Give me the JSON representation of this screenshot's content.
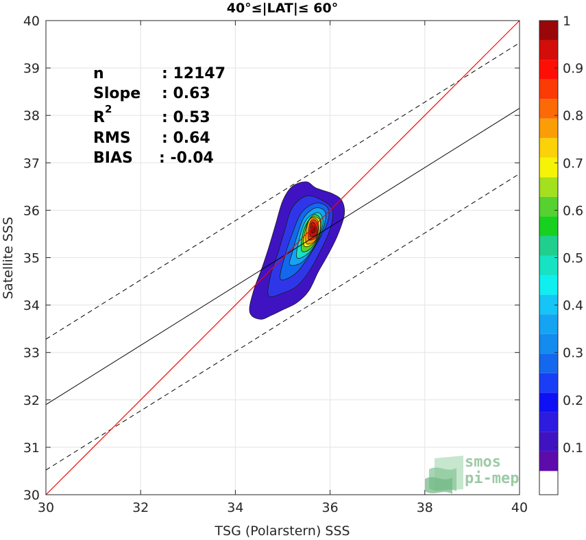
{
  "chart_data": {
    "type": "contour",
    "title": "40°≤|LAT|≤ 60°",
    "xlabel": "TSG (Polarstern) SSS",
    "ylabel": "Satellite SSS",
    "xlim": [
      30,
      40
    ],
    "ylim": [
      30,
      40
    ],
    "xticks": [
      30,
      32,
      34,
      36,
      38,
      40
    ],
    "yticks": [
      30,
      31,
      32,
      33,
      34,
      35,
      36,
      37,
      38,
      39,
      40
    ],
    "grid": true,
    "stats": {
      "n_label": "n",
      "n_value": ": 12147",
      "slope_label": "Slope",
      "slope_value": ": 0.63",
      "r2_label": "R",
      "r2_sup": "2",
      "r2_value": ": 0.53",
      "rms_label": "RMS",
      "rms_value": ": 0.64",
      "bias_label": "BIAS",
      "bias_value": ": -0.04"
    },
    "identity_line": {
      "x": [
        30,
        40
      ],
      "y": [
        30,
        40
      ],
      "color": "#ff0000"
    },
    "regression_line": {
      "x": [
        30,
        40
      ],
      "y": [
        31.9,
        38.15
      ],
      "color": "#000000"
    },
    "confidence_lines": [
      {
        "x": [
          30,
          40
        ],
        "y": [
          33.28,
          39.53
        ]
      },
      {
        "x": [
          30,
          40
        ],
        "y": [
          30.52,
          36.77
        ]
      }
    ],
    "density_contours": [
      {
        "level": 0.05,
        "color": "#3f13c2",
        "points": [
          [
            34.3,
            33.95
          ],
          [
            34.35,
            33.77
          ],
          [
            34.55,
            33.7
          ],
          [
            34.75,
            33.78
          ],
          [
            35.0,
            33.9
          ],
          [
            35.3,
            34.05
          ],
          [
            35.55,
            34.3
          ],
          [
            35.75,
            34.7
          ],
          [
            35.95,
            35.05
          ],
          [
            36.15,
            35.45
          ],
          [
            36.3,
            35.9
          ],
          [
            36.25,
            36.2
          ],
          [
            36.05,
            36.35
          ],
          [
            35.7,
            36.47
          ],
          [
            35.5,
            36.6
          ],
          [
            35.2,
            36.5
          ],
          [
            35.0,
            36.2
          ],
          [
            34.85,
            35.7
          ],
          [
            34.7,
            35.2
          ],
          [
            34.55,
            34.75
          ],
          [
            34.4,
            34.35
          ]
        ]
      },
      {
        "level": 0.15,
        "color": "#2f36ea",
        "points": [
          [
            34.7,
            34.2
          ],
          [
            35.0,
            34.25
          ],
          [
            35.3,
            34.4
          ],
          [
            35.55,
            34.7
          ],
          [
            35.8,
            35.15
          ],
          [
            36.0,
            35.6
          ],
          [
            36.05,
            36.0
          ],
          [
            35.85,
            36.2
          ],
          [
            35.5,
            36.3
          ],
          [
            35.2,
            36.05
          ],
          [
            35.05,
            35.6
          ],
          [
            34.9,
            35.1
          ],
          [
            34.75,
            34.65
          ]
        ]
      },
      {
        "level": 0.25,
        "color": "#1468ee",
        "points": [
          [
            34.95,
            34.55
          ],
          [
            35.25,
            34.65
          ],
          [
            35.5,
            34.95
          ],
          [
            35.75,
            35.35
          ],
          [
            35.95,
            35.75
          ],
          [
            35.95,
            36.05
          ],
          [
            35.7,
            36.15
          ],
          [
            35.4,
            35.95
          ],
          [
            35.2,
            35.5
          ],
          [
            35.05,
            35.05
          ]
        ]
      },
      {
        "level": 0.35,
        "color": "#15a4f2",
        "points": [
          [
            35.15,
            34.85
          ],
          [
            35.4,
            34.9
          ],
          [
            35.65,
            35.2
          ],
          [
            35.85,
            35.6
          ],
          [
            35.9,
            35.95
          ],
          [
            35.7,
            36.05
          ],
          [
            35.45,
            35.85
          ],
          [
            35.3,
            35.45
          ],
          [
            35.2,
            35.1
          ]
        ]
      },
      {
        "level": 0.45,
        "color": "#17e3c3",
        "points": [
          [
            35.3,
            35.0
          ],
          [
            35.55,
            35.1
          ],
          [
            35.75,
            35.4
          ],
          [
            35.85,
            35.75
          ],
          [
            35.75,
            35.95
          ],
          [
            35.5,
            35.8
          ],
          [
            35.35,
            35.4
          ]
        ]
      },
      {
        "level": 0.55,
        "color": "#55d230",
        "points": [
          [
            35.4,
            35.15
          ],
          [
            35.6,
            35.2
          ],
          [
            35.78,
            35.5
          ],
          [
            35.8,
            35.8
          ],
          [
            35.65,
            35.9
          ],
          [
            35.45,
            35.6
          ]
        ]
      },
      {
        "level": 0.65,
        "color": "#f6f406",
        "points": [
          [
            35.45,
            35.25
          ],
          [
            35.65,
            35.3
          ],
          [
            35.78,
            35.55
          ],
          [
            35.78,
            35.8
          ],
          [
            35.6,
            35.85
          ],
          [
            35.48,
            35.6
          ]
        ]
      },
      {
        "level": 0.75,
        "color": "#fb9e06",
        "points": [
          [
            35.5,
            35.3
          ],
          [
            35.68,
            35.35
          ],
          [
            35.76,
            35.6
          ],
          [
            35.73,
            35.8
          ],
          [
            35.58,
            35.82
          ],
          [
            35.5,
            35.6
          ]
        ]
      },
      {
        "level": 0.85,
        "color": "#fc3a06",
        "points": [
          [
            35.55,
            35.38
          ],
          [
            35.7,
            35.42
          ],
          [
            35.75,
            35.62
          ],
          [
            35.7,
            35.78
          ],
          [
            35.6,
            35.78
          ],
          [
            35.55,
            35.6
          ]
        ]
      },
      {
        "level": 0.95,
        "color": "#d30d09",
        "points": [
          [
            35.58,
            35.45
          ],
          [
            35.7,
            35.48
          ],
          [
            35.72,
            35.62
          ],
          [
            35.66,
            35.74
          ],
          [
            35.6,
            35.72
          ],
          [
            35.58,
            35.6
          ]
        ]
      },
      {
        "level": 1.0,
        "color": "#9a0709",
        "points": [
          [
            35.62,
            35.52
          ],
          [
            35.68,
            35.55
          ],
          [
            35.68,
            35.64
          ],
          [
            35.63,
            35.66
          ],
          [
            35.61,
            35.6
          ]
        ]
      }
    ],
    "colorbar": {
      "range": [
        0,
        1
      ],
      "ticks": [
        "0.1",
        "0.2",
        "0.3",
        "0.4",
        "0.5",
        "0.6",
        "0.7",
        "0.8",
        "0.9",
        "1"
      ],
      "tick_values": [
        0.1,
        0.2,
        0.3,
        0.4,
        0.5,
        0.6,
        0.7,
        0.8,
        0.9,
        1.0
      ],
      "colors": [
        "#ffffff",
        "#5d0bab",
        "#3f13c2",
        "#2d1be0",
        "#0f10f5",
        "#1a3ef5",
        "#1468ee",
        "#148bef",
        "#15a4f2",
        "#15c5f5",
        "#0fefef",
        "#17e3c3",
        "#20cf8e",
        "#18d020",
        "#55d230",
        "#a3e01d",
        "#f6f406",
        "#fbd107",
        "#fb9e06",
        "#fb6a07",
        "#fc3a06",
        "#fe0f06",
        "#d30d09",
        "#9a0709"
      ]
    },
    "logo": {
      "line1": "smos",
      "line2": "pi-mep"
    }
  }
}
